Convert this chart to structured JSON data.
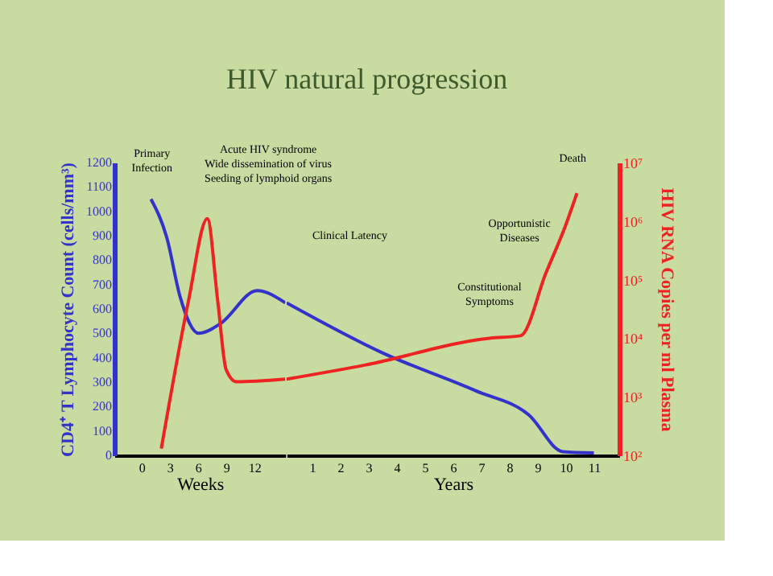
{
  "chart_data": [
    {
      "type": "line",
      "title": "HIV natural progression",
      "ylabel": "CD4⁺ T Lymphocyte Count (cells/mm³)",
      "xlabel": "Weeks",
      "xlim": [
        -2.9,
        15.3
      ],
      "xticks": [
        0,
        3,
        6,
        9,
        12
      ],
      "ylim": [
        0,
        1200
      ],
      "yticks": [
        0,
        100,
        200,
        300,
        400,
        500,
        600,
        700,
        800,
        900,
        1000,
        1100,
        1200
      ],
      "y2lim": [
        100,
        10000000
      ],
      "log": "y2",
      "grid": false,
      "series": [
        {
          "color": "#3333cc",
          "x": [
            1.0,
            2.7,
            4.1,
            6.1,
            8.4,
            12.3,
            15.3
          ],
          "values": [
            1050,
            890,
            650,
            500,
            540,
            675,
            625
          ]
        },
        {
          "color": "#ee2222",
          "axis": "y2",
          "x": [
            2.1,
            5.0,
            7.0,
            8.1,
            9.0,
            10.1,
            15.3
          ],
          "values": [
            130,
            44000,
            1100000,
            44000,
            2900,
            1800,
            2000
          ]
        }
      ],
      "annotations": [
        "Primary\nInfection",
        "Acute HIV syndrome\nWide dissemination of virus\nSeeding of lymphoid organs"
      ]
    },
    {
      "type": "line",
      "y2label": "HIV RNA Copies per ml Plasma",
      "xlabel": "Years",
      "xlim": [
        0.1,
        11.9
      ],
      "xticks": [
        1,
        2,
        3,
        4,
        5,
        6,
        7,
        8,
        9,
        10,
        11
      ],
      "ylim": [
        0,
        1200
      ],
      "y2lim": [
        100,
        10000000
      ],
      "y2ticks": [
        {
          "value": 100,
          "label": "10²"
        },
        {
          "value": 1000,
          "label": "10³"
        },
        {
          "value": 10000,
          "label": "10⁴"
        },
        {
          "value": 100000,
          "label": "10⁵"
        },
        {
          "value": 1000000,
          "label": "10⁶"
        },
        {
          "value": 10000000,
          "label": "10⁷"
        }
      ],
      "log": "y2",
      "grid": false,
      "series": [
        {
          "color": "#3333cc",
          "x": [
            0.1,
            3.5,
            6.8,
            8.7,
            9.9,
            11.0
          ],
          "values": [
            625,
            420,
            265,
            165,
            15,
            10
          ]
        },
        {
          "color": "#ee2222",
          "axis": "y2",
          "x": [
            0.1,
            2.9,
            7.3,
            8.4,
            9.3,
            10.0,
            10.4
          ],
          "values": [
            2000,
            3500,
            10000,
            11000,
            130000,
            850000,
            3000000
          ]
        }
      ],
      "annotations": [
        "Clinical Latency",
        "Constitutional\nSymptoms",
        "Opportunistic\nDiseases",
        "Death"
      ]
    }
  ]
}
